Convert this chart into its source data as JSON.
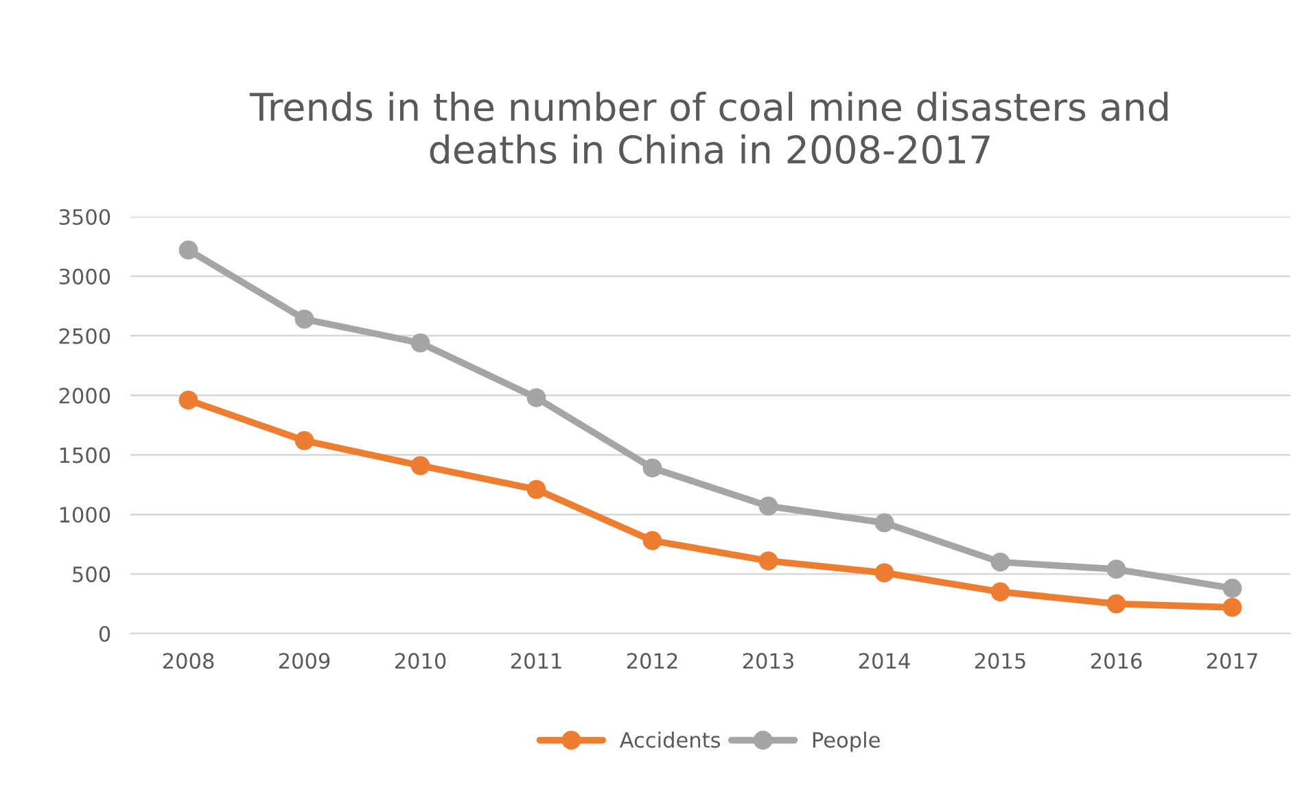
{
  "chart_data": {
    "type": "line",
    "title": "Trends in the number of coal mine disasters and\ndeaths in China in 2008-2017",
    "categories": [
      "2008",
      "2009",
      "2010",
      "2011",
      "2012",
      "2013",
      "2014",
      "2015",
      "2016",
      "2017"
    ],
    "series": [
      {
        "name": "Accidents",
        "color": "#ed7d31",
        "values": [
          1960,
          1620,
          1410,
          1210,
          780,
          610,
          510,
          350,
          250,
          220
        ]
      },
      {
        "name": "People",
        "color": "#a5a5a5",
        "values": [
          3220,
          2640,
          2440,
          1980,
          1390,
          1070,
          930,
          600,
          540,
          380
        ]
      }
    ],
    "ylim": [
      0,
      3500
    ],
    "yticks": [
      0,
      500,
      1000,
      1500,
      2000,
      2500,
      3000,
      3500
    ],
    "grid": "y",
    "legend": "bottom",
    "marker": "circle",
    "line_style": "solid"
  }
}
